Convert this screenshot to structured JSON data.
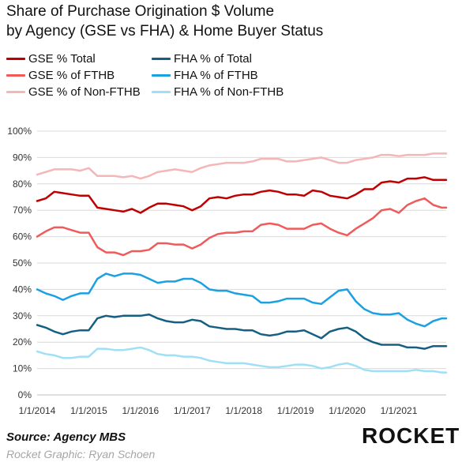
{
  "title_line1": "Share of Purchase Origination $ Volume",
  "title_line2": "by Agency (GSE vs FHA) & Home Buyer Status",
  "source": "Source: Agency MBS",
  "credit": "Rocket Graphic: Ryan Schoen",
  "logo_text": "ROCKET",
  "chart_data": {
    "type": "line",
    "title": "Share of Purchase Origination $ Volume by Agency (GSE vs FHA) & Home Buyer Status",
    "xlabel": "",
    "ylabel": "",
    "ylim": [
      0,
      100
    ],
    "y_ticks": [
      "0%",
      "10%",
      "20%",
      "30%",
      "40%",
      "50%",
      "60%",
      "70%",
      "80%",
      "90%",
      "100%"
    ],
    "x_ticks": [
      "1/1/2014",
      "1/1/2015",
      "1/1/2016",
      "1/1/2017",
      "1/1/2018",
      "1/1/2019",
      "1/1/2020",
      "1/1/2021"
    ],
    "x_start": "2014-01",
    "x_end": "2021-12",
    "grid": "horizontal",
    "legend_placement": "top-left",
    "x": [
      "2014-01",
      "2014-03",
      "2014-05",
      "2014-07",
      "2014-09",
      "2014-11",
      "2015-01",
      "2015-03",
      "2015-05",
      "2015-07",
      "2015-09",
      "2015-11",
      "2016-01",
      "2016-03",
      "2016-05",
      "2016-07",
      "2016-09",
      "2016-11",
      "2017-01",
      "2017-03",
      "2017-05",
      "2017-07",
      "2017-09",
      "2017-11",
      "2018-01",
      "2018-03",
      "2018-05",
      "2018-07",
      "2018-09",
      "2018-11",
      "2019-01",
      "2019-03",
      "2019-05",
      "2019-07",
      "2019-09",
      "2019-11",
      "2020-01",
      "2020-03",
      "2020-05",
      "2020-07",
      "2020-09",
      "2020-11",
      "2021-01",
      "2021-03",
      "2021-05",
      "2021-07",
      "2021-09",
      "2021-11",
      "2021-12"
    ],
    "series": [
      {
        "name": "GSE % Total",
        "color": "#c00000",
        "width": 2.5,
        "values": [
          73.5,
          74.5,
          77,
          76.5,
          76,
          75.5,
          75.5,
          71,
          70.5,
          70,
          69.5,
          70.5,
          69,
          71,
          72.5,
          72.5,
          72,
          71.5,
          70,
          71.5,
          74.5,
          75,
          74.5,
          75.5,
          76,
          76,
          77,
          77.5,
          77,
          76,
          76,
          75.5,
          77.5,
          77,
          75.5,
          75,
          74.5,
          76,
          78,
          78,
          80.5,
          81,
          80.5,
          82,
          82,
          82.5,
          81.5,
          81.5,
          81.5
        ]
      },
      {
        "name": "GSE % of FTHB",
        "color": "#ef5b5b",
        "width": 2.5,
        "values": [
          60,
          62,
          63.5,
          63.5,
          62.5,
          61.5,
          61.5,
          56,
          54,
          54,
          53,
          54.5,
          54.5,
          55,
          57.5,
          57.5,
          57,
          57,
          55.5,
          57,
          59.5,
          61,
          61.5,
          61.5,
          62,
          62,
          64.5,
          65,
          64.5,
          63,
          63,
          63,
          64.5,
          65,
          63,
          61.5,
          60.5,
          63,
          65,
          67,
          70,
          70.5,
          69,
          72,
          73.5,
          74.5,
          72,
          71,
          71
        ]
      },
      {
        "name": "GSE % of Non-FTHB",
        "color": "#f4b6b6",
        "width": 2.5,
        "values": [
          83.5,
          84.5,
          85.5,
          85.5,
          85.5,
          85,
          86,
          83,
          83,
          83,
          82.5,
          83,
          82,
          83,
          84.5,
          85,
          85.5,
          85,
          84.5,
          86,
          87,
          87.5,
          88,
          88,
          88,
          88.5,
          89.5,
          89.5,
          89.5,
          88.5,
          88.5,
          89,
          89.5,
          90,
          89,
          88,
          88,
          89,
          89.5,
          90,
          91,
          91,
          90.5,
          91,
          91,
          91,
          91.5,
          91.5,
          91.5
        ]
      },
      {
        "name": "FHA % of Total",
        "color": "#156082",
        "width": 2.5,
        "values": [
          26.5,
          25.5,
          24,
          23,
          24,
          24.5,
          24.5,
          29,
          30,
          29.5,
          30,
          30,
          30,
          30.5,
          29,
          28,
          27.5,
          27.5,
          28.5,
          28,
          26,
          25.5,
          25,
          25,
          24.5,
          24.5,
          23,
          22.5,
          23,
          24,
          24,
          24.5,
          23,
          21.5,
          24,
          25,
          25.5,
          24,
          21.5,
          20,
          19,
          19,
          19,
          18,
          18,
          17.5,
          18.5,
          18.5,
          18.5
        ]
      },
      {
        "name": "FHA % of FTHB",
        "color": "#1ba1e2",
        "width": 2.5,
        "values": [
          40,
          38.5,
          37.5,
          36,
          37.5,
          38.5,
          38.5,
          44,
          46,
          45,
          46,
          46,
          45.5,
          44,
          42.5,
          43,
          43,
          44,
          44,
          42.5,
          40,
          39.5,
          39.5,
          38.5,
          38,
          37.5,
          35,
          35,
          35.5,
          36.5,
          36.5,
          36.5,
          35,
          34.5,
          37,
          39.5,
          40,
          35.5,
          32.5,
          31,
          30.5,
          30.5,
          31,
          28.5,
          27,
          26,
          28,
          29,
          29
        ]
      },
      {
        "name": "FHA % of Non-FTHB",
        "color": "#9fe0f5",
        "width": 2.5,
        "values": [
          16.5,
          15.5,
          15,
          14,
          14,
          14.5,
          14.5,
          17.5,
          17.5,
          17,
          17,
          17.5,
          18,
          17,
          15.5,
          15,
          15,
          14.5,
          14.5,
          14,
          13,
          12.5,
          12,
          12,
          12,
          11.5,
          11,
          10.5,
          10.5,
          11,
          11.5,
          11.5,
          11,
          10,
          10.5,
          11.5,
          12,
          11,
          9.5,
          9,
          9,
          9,
          9,
          9,
          9.5,
          9,
          9,
          8.5,
          8.5
        ]
      }
    ]
  }
}
